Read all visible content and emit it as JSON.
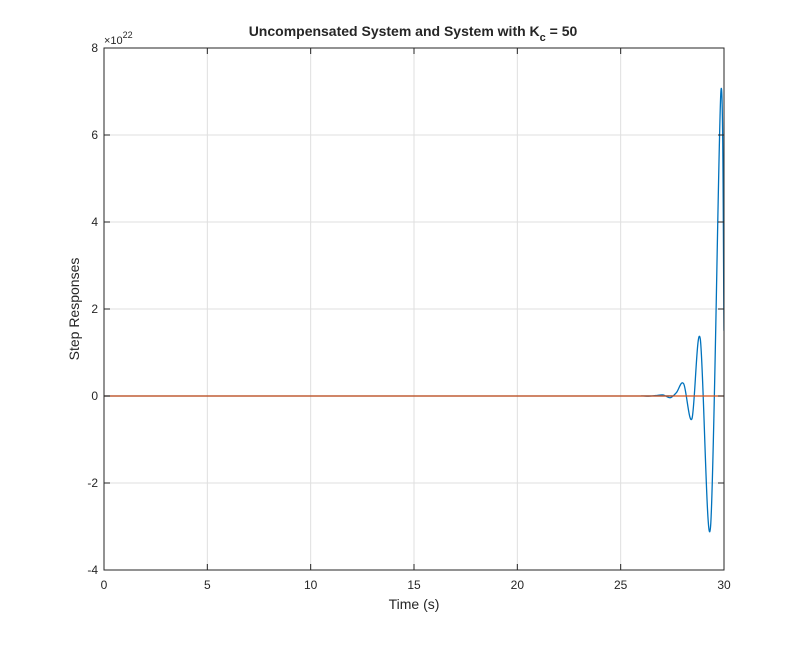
{
  "chart_data": {
    "type": "line",
    "title": {
      "prefix": "Uncompensated System and System with K",
      "subscript": "c",
      "suffix": " = 50"
    },
    "xlabel": "Time (s)",
    "ylabel": "Step Responses",
    "xlim": [
      0,
      30
    ],
    "ylim": [
      -4,
      8
    ],
    "y_exponent_label": {
      "base": "×10",
      "exponent": "22"
    },
    "xticks": [
      0,
      5,
      10,
      15,
      20,
      25,
      30
    ],
    "yticks": [
      -4,
      -2,
      0,
      2,
      4,
      6,
      8
    ],
    "grid": true,
    "legend": "none",
    "series": [
      {
        "color": "#0072BD",
        "kind": "growing_oscillation",
        "points": [
          [
            0,
            0
          ],
          [
            25.5,
            0
          ],
          [
            26.0,
            0.003
          ],
          [
            26.35,
            -0.005
          ],
          [
            26.7,
            0.01
          ],
          [
            27.05,
            0.025
          ],
          [
            27.4,
            -0.04
          ],
          [
            27.7,
            0.08
          ],
          [
            28.05,
            0.28
          ],
          [
            28.45,
            -0.52
          ],
          [
            28.85,
            1.32
          ],
          [
            29.35,
            -3.0
          ],
          [
            29.85,
            7.0
          ],
          [
            30.0,
            1.5
          ]
        ]
      },
      {
        "color": "#D95319",
        "kind": "flat",
        "points": [
          [
            0,
            0
          ],
          [
            30,
            0
          ]
        ]
      }
    ]
  }
}
